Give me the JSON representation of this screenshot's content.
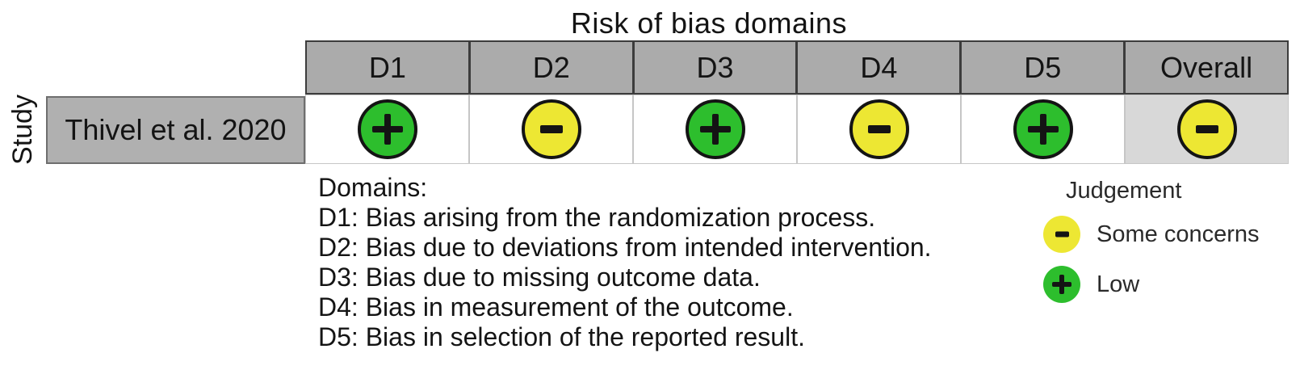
{
  "chart_data": {
    "type": "table",
    "title": "Risk of bias domains",
    "row_axis_label": "Study",
    "columns": [
      "D1",
      "D2",
      "D3",
      "D4",
      "D5",
      "Overall"
    ],
    "rows": [
      {
        "study": "Thivel et al. 2020",
        "judgements": [
          "Low",
          "Some concerns",
          "Low",
          "Some concerns",
          "Low",
          "Some concerns"
        ]
      }
    ],
    "domains_legend": {
      "heading": "Domains:",
      "items": [
        "D1: Bias arising from the randomization process.",
        "D2: Bias due to deviations from intended intervention.",
        "D3: Bias due to missing outcome data.",
        "D4: Bias in measurement of the outcome.",
        "D5: Bias in selection of the reported result."
      ]
    },
    "judgement_legend": {
      "heading": "Judgement",
      "items": [
        {
          "label": "Some concerns",
          "symbol": "minus",
          "color": "#ede733"
        },
        {
          "label": "Low",
          "symbol": "plus",
          "color": "#2dbe2d"
        }
      ]
    },
    "colors": {
      "low": "#2dbe2d",
      "some_concerns": "#ede733",
      "header_bg": "#ababab",
      "overall_cell_bg": "#d8d8d8"
    }
  }
}
